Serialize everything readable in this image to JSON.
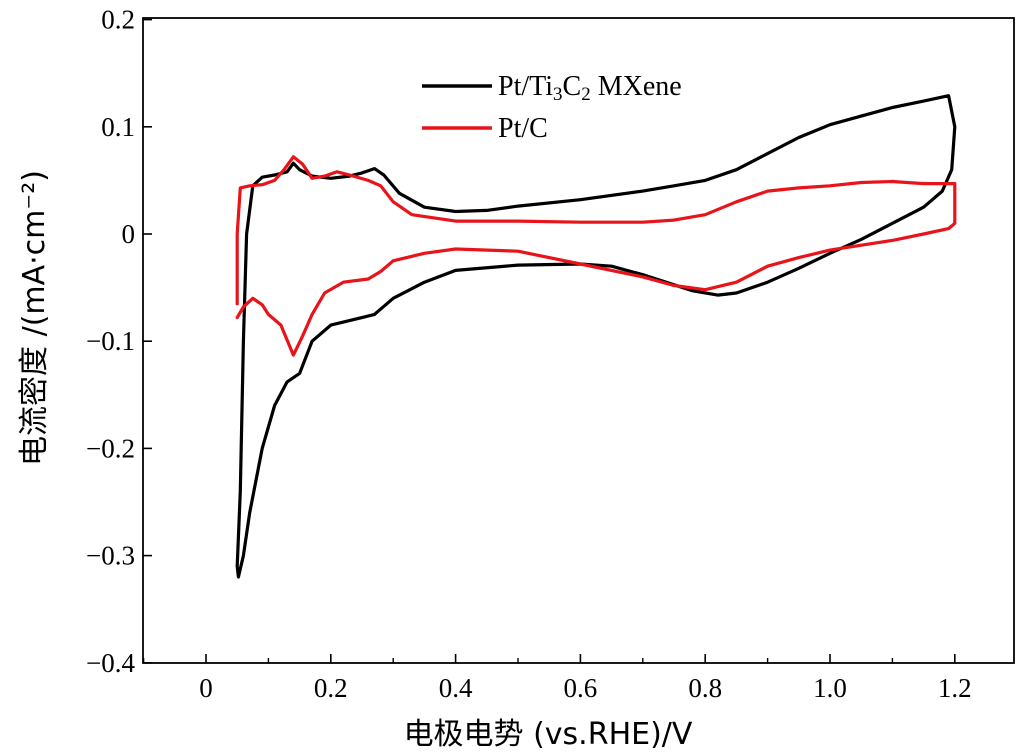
{
  "chart_data": {
    "type": "line",
    "title": "",
    "xlabel": "电极电势 (vs.RHE)/V",
    "ylabel": "电流密度 /(mA·cm⁻²)",
    "xlim": [
      -0.1,
      1.25
    ],
    "ylim": [
      -0.4,
      0.2
    ],
    "xticks": [
      "0",
      "0.2",
      "0.4",
      "0.6",
      "0.8",
      "1.0",
      "1.2"
    ],
    "yticks": [
      "0.2",
      "0.1",
      "0",
      "−0.1",
      "−0.2",
      "−0.3",
      "−0.4"
    ],
    "grid": false,
    "legend_position": "top-center",
    "series": [
      {
        "name": "Pt/Ti3C2 MXene",
        "legend_parts": [
          "Pt/Ti",
          "3",
          "C",
          "2",
          " MXene"
        ],
        "color": "#000000",
        "points": [
          [
            0.05,
            -0.31
          ],
          [
            0.055,
            -0.24
          ],
          [
            0.06,
            -0.1
          ],
          [
            0.065,
            0.0
          ],
          [
            0.075,
            0.045
          ],
          [
            0.09,
            0.053
          ],
          [
            0.11,
            0.055
          ],
          [
            0.13,
            0.058
          ],
          [
            0.14,
            0.066
          ],
          [
            0.15,
            0.06
          ],
          [
            0.17,
            0.054
          ],
          [
            0.2,
            0.052
          ],
          [
            0.23,
            0.054
          ],
          [
            0.25,
            0.057
          ],
          [
            0.27,
            0.061
          ],
          [
            0.285,
            0.055
          ],
          [
            0.31,
            0.038
          ],
          [
            0.35,
            0.025
          ],
          [
            0.4,
            0.021
          ],
          [
            0.45,
            0.022
          ],
          [
            0.5,
            0.026
          ],
          [
            0.6,
            0.032
          ],
          [
            0.7,
            0.04
          ],
          [
            0.75,
            0.045
          ],
          [
            0.8,
            0.05
          ],
          [
            0.85,
            0.06
          ],
          [
            0.9,
            0.075
          ],
          [
            0.95,
            0.09
          ],
          [
            1.0,
            0.102
          ],
          [
            1.05,
            0.11
          ],
          [
            1.1,
            0.118
          ],
          [
            1.15,
            0.124
          ],
          [
            1.19,
            0.129
          ],
          [
            1.2,
            0.1
          ],
          [
            1.195,
            0.06
          ],
          [
            1.18,
            0.04
          ],
          [
            1.15,
            0.025
          ],
          [
            1.1,
            0.01
          ],
          [
            1.05,
            -0.005
          ],
          [
            1.0,
            -0.018
          ],
          [
            0.95,
            -0.032
          ],
          [
            0.9,
            -0.045
          ],
          [
            0.85,
            -0.055
          ],
          [
            0.82,
            -0.057
          ],
          [
            0.78,
            -0.053
          ],
          [
            0.7,
            -0.038
          ],
          [
            0.65,
            -0.03
          ],
          [
            0.6,
            -0.028
          ],
          [
            0.5,
            -0.029
          ],
          [
            0.4,
            -0.034
          ],
          [
            0.35,
            -0.045
          ],
          [
            0.3,
            -0.06
          ],
          [
            0.27,
            -0.075
          ],
          [
            0.25,
            -0.078
          ],
          [
            0.2,
            -0.085
          ],
          [
            0.17,
            -0.1
          ],
          [
            0.15,
            -0.13
          ],
          [
            0.13,
            -0.138
          ],
          [
            0.11,
            -0.16
          ],
          [
            0.09,
            -0.2
          ],
          [
            0.07,
            -0.26
          ],
          [
            0.06,
            -0.3
          ],
          [
            0.052,
            -0.32
          ],
          [
            0.05,
            -0.31
          ]
        ]
      },
      {
        "name": "Pt/C",
        "legend_parts": [
          "Pt/C"
        ],
        "color": "#e8141a",
        "points": [
          [
            0.05,
            -0.065
          ],
          [
            0.05,
            0.0
          ],
          [
            0.055,
            0.043
          ],
          [
            0.07,
            0.045
          ],
          [
            0.09,
            0.046
          ],
          [
            0.11,
            0.05
          ],
          [
            0.125,
            0.06
          ],
          [
            0.14,
            0.072
          ],
          [
            0.155,
            0.065
          ],
          [
            0.17,
            0.052
          ],
          [
            0.19,
            0.054
          ],
          [
            0.21,
            0.058
          ],
          [
            0.23,
            0.055
          ],
          [
            0.26,
            0.05
          ],
          [
            0.28,
            0.045
          ],
          [
            0.3,
            0.03
          ],
          [
            0.33,
            0.018
          ],
          [
            0.4,
            0.012
          ],
          [
            0.5,
            0.012
          ],
          [
            0.6,
            0.011
          ],
          [
            0.7,
            0.011
          ],
          [
            0.75,
            0.013
          ],
          [
            0.8,
            0.018
          ],
          [
            0.85,
            0.03
          ],
          [
            0.9,
            0.04
          ],
          [
            0.95,
            0.043
          ],
          [
            1.0,
            0.045
          ],
          [
            1.05,
            0.048
          ],
          [
            1.1,
            0.049
          ],
          [
            1.15,
            0.047
          ],
          [
            1.2,
            0.047
          ],
          [
            1.2,
            0.01
          ],
          [
            1.19,
            0.005
          ],
          [
            1.15,
            0.0
          ],
          [
            1.1,
            -0.006
          ],
          [
            1.0,
            -0.015
          ],
          [
            0.95,
            -0.022
          ],
          [
            0.9,
            -0.03
          ],
          [
            0.85,
            -0.045
          ],
          [
            0.8,
            -0.052
          ],
          [
            0.75,
            -0.048
          ],
          [
            0.7,
            -0.04
          ],
          [
            0.6,
            -0.028
          ],
          [
            0.5,
            -0.016
          ],
          [
            0.4,
            -0.014
          ],
          [
            0.35,
            -0.018
          ],
          [
            0.3,
            -0.025
          ],
          [
            0.28,
            -0.035
          ],
          [
            0.26,
            -0.042
          ],
          [
            0.22,
            -0.045
          ],
          [
            0.19,
            -0.055
          ],
          [
            0.17,
            -0.075
          ],
          [
            0.155,
            -0.095
          ],
          [
            0.14,
            -0.113
          ],
          [
            0.12,
            -0.085
          ],
          [
            0.1,
            -0.075
          ],
          [
            0.09,
            -0.066
          ],
          [
            0.075,
            -0.06
          ],
          [
            0.06,
            -0.068
          ],
          [
            0.05,
            -0.078
          ]
        ]
      }
    ]
  }
}
